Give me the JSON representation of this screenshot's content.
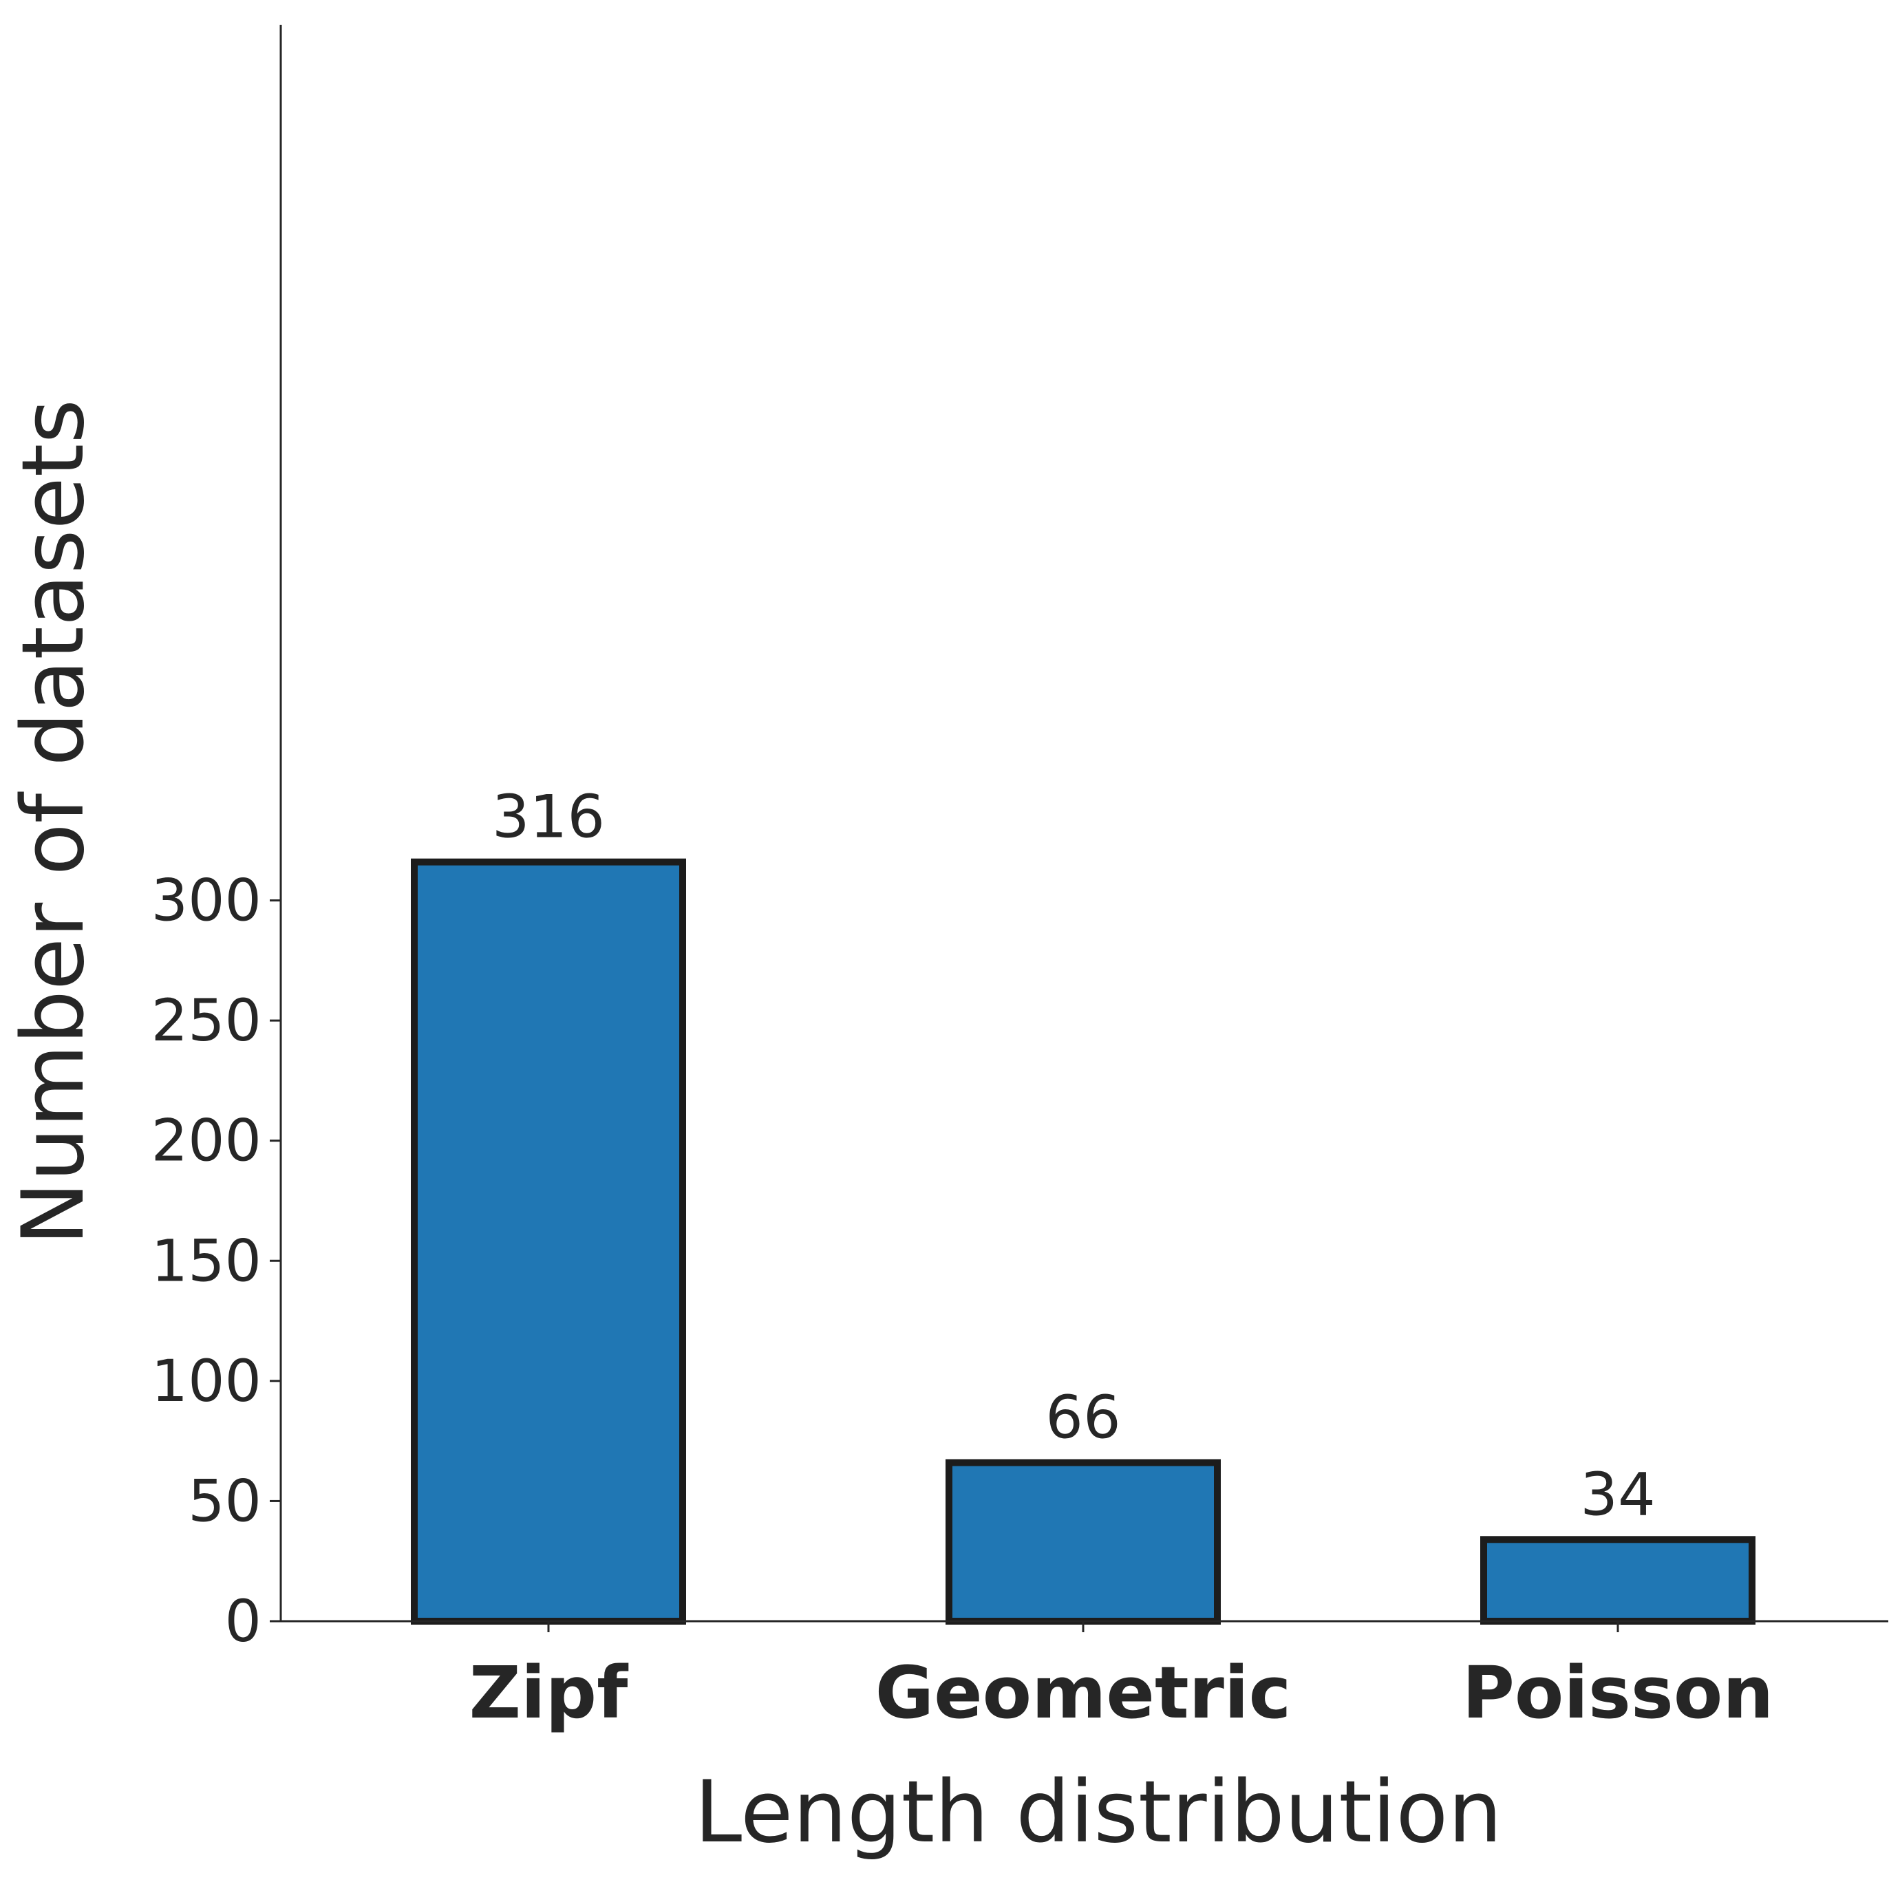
{
  "chart_data": {
    "type": "bar",
    "categories": [
      "Zipf",
      "Geometric",
      "Poisson"
    ],
    "values": [
      316,
      66,
      34
    ],
    "title": "",
    "xlabel": "Length distribution",
    "ylabel": "Number of datasets",
    "ylim": [
      0,
      332
    ],
    "yticks": [
      0,
      50,
      100,
      150,
      200,
      250,
      300
    ],
    "bar_labels": [
      "316",
      "66",
      "34"
    ],
    "bar_color": "#2077b4",
    "bar_edge_color": "#1c1c1c",
    "grid": false,
    "legend": "none"
  }
}
